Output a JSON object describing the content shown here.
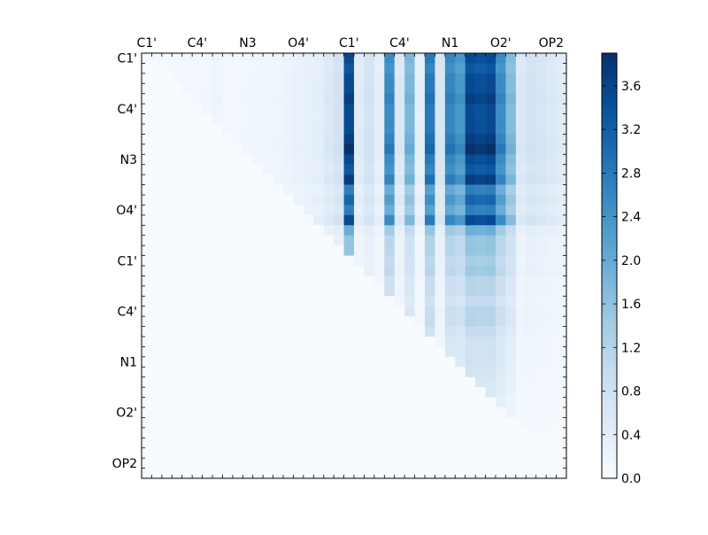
{
  "chart_data": {
    "type": "heatmap",
    "title": "",
    "xlabel": "",
    "ylabel": "",
    "rows": 42,
    "cols": 42,
    "x_tick_labels": [
      "C1'",
      "C4'",
      "N3",
      "O4'",
      "C1'",
      "C4'",
      "N1",
      "O2'",
      "OP2"
    ],
    "y_tick_labels": [
      "C1'",
      "C4'",
      "N3",
      "O4'",
      "C1'",
      "C4'",
      "N1",
      "O2'",
      "OP2"
    ],
    "colorbar": {
      "min": 0.0,
      "max": 3.9,
      "tick_values": [
        0.0,
        0.4,
        0.8,
        1.2,
        1.6,
        2.0,
        2.4,
        2.8,
        3.2,
        3.6
      ],
      "tick_labels": [
        "0.0",
        "0.4",
        "0.8",
        "1.2",
        "1.6",
        "2.0",
        "2.4",
        "2.8",
        "3.2",
        "3.6"
      ],
      "colormap": [
        "#f7fbff",
        "#deebf7",
        "#c6dbef",
        "#9ecae1",
        "#6baed6",
        "#4292c6",
        "#2171b5",
        "#08519c",
        "#08306b"
      ]
    },
    "column_profile": [
      0.05,
      0.06,
      0.08,
      0.1,
      0.12,
      0.14,
      0.15,
      0.2,
      0.12,
      0.14,
      0.15,
      0.16,
      0.18,
      0.2,
      0.25,
      0.3,
      0.35,
      0.4,
      0.6,
      0.8,
      3.9,
      0.5,
      0.8,
      0.4,
      2.8,
      0.6,
      2.0,
      0.4,
      3.1,
      0.7,
      2.9,
      2.6,
      3.9,
      3.8,
      3.9,
      2.8,
      1.9,
      0.6,
      0.8,
      0.7,
      0.6,
      0.5
    ],
    "row_profile": [
      0.9,
      0.85,
      0.9,
      0.9,
      0.95,
      0.9,
      0.9,
      0.9,
      0.95,
      1.0,
      0.9,
      0.85,
      0.95,
      0.7,
      0.8,
      0.7,
      0.9,
      0.5,
      0.4,
      0.4,
      0.35,
      0.38,
      0.3,
      0.3,
      0.25,
      0.3,
      0.3,
      0.25,
      0.2,
      0.2,
      0.2,
      0.18,
      0.15,
      0.15,
      0.12,
      0.1,
      0.1,
      0.08,
      0.05,
      0.04,
      0.03,
      0.02
    ]
  }
}
